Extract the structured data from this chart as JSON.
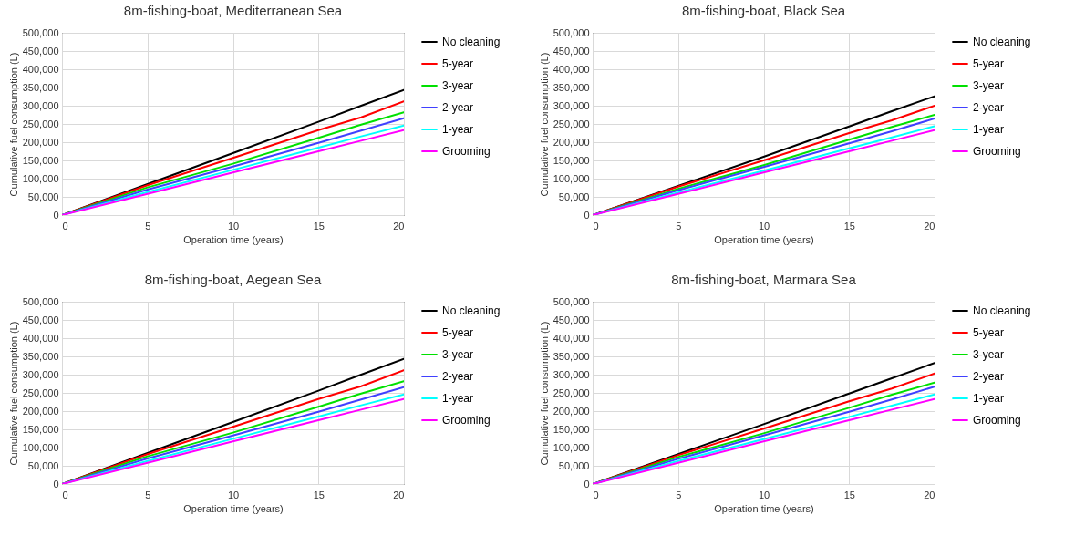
{
  "chart_data": [
    {
      "type": "line",
      "title": "8m-fishing-boat, Mediterranean Sea",
      "xlabel": "Operation time (years)",
      "ylabel": "Cumulative fuel consumption (L)",
      "x": [
        0,
        5,
        10,
        15,
        17.5,
        20
      ],
      "xlim": [
        0,
        20
      ],
      "xticks": [
        0,
        5,
        10,
        15,
        20
      ],
      "ylim": [
        0,
        500000
      ],
      "yticks": [
        {
          "value": 0,
          "label": "0"
        },
        {
          "value": 50000,
          "label": "50,000"
        },
        {
          "value": 100000,
          "label": "100,000"
        },
        {
          "value": 150000,
          "label": "150,000"
        },
        {
          "value": 200000,
          "label": "200,000"
        },
        {
          "value": 250000,
          "label": "250,000"
        },
        {
          "value": 300000,
          "label": "300,000"
        },
        {
          "value": 350000,
          "label": "350,000"
        },
        {
          "value": 400000,
          "label": "400,000"
        },
        {
          "value": 450000,
          "label": "450,000"
        },
        {
          "value": 500000,
          "label": "500,000"
        }
      ],
      "grid": true,
      "legend": "right",
      "series": [
        {
          "name": "No cleaning",
          "color": "#000000",
          "values": [
            0,
            85000,
            170000,
            256000,
            300000,
            343000
          ]
        },
        {
          "name": "5-year",
          "color": "#ff0000",
          "values": [
            0,
            82000,
            157000,
            233000,
            268000,
            312000
          ]
        },
        {
          "name": "3-year",
          "color": "#00e000",
          "values": [
            0,
            76000,
            141000,
            212000,
            248000,
            282000
          ]
        },
        {
          "name": "2-year",
          "color": "#4040ff",
          "values": [
            0,
            70000,
            133000,
            198000,
            232000,
            266000
          ]
        },
        {
          "name": "1-year",
          "color": "#00ffff",
          "values": [
            0,
            63000,
            124000,
            185000,
            216000,
            246000
          ]
        },
        {
          "name": "Grooming",
          "color": "#ff00ff",
          "values": [
            0,
            58000,
            117000,
            175000,
            204000,
            233000
          ]
        }
      ]
    },
    {
      "type": "line",
      "title": "8m-fishing-boat, Black Sea",
      "xlabel": "Operation time (years)",
      "ylabel": "Cumulative fuel consumption (L)",
      "x": [
        0,
        5,
        10,
        15,
        17.5,
        20
      ],
      "xlim": [
        0,
        20
      ],
      "xticks": [
        0,
        5,
        10,
        15,
        20
      ],
      "ylim": [
        0,
        500000
      ],
      "yticks": [
        {
          "value": 0,
          "label": "0"
        },
        {
          "value": 50000,
          "label": "50,000"
        },
        {
          "value": 100000,
          "label": "100,000"
        },
        {
          "value": 150000,
          "label": "150,000"
        },
        {
          "value": 200000,
          "label": "200,000"
        },
        {
          "value": 250000,
          "label": "250,000"
        },
        {
          "value": 300000,
          "label": "300,000"
        },
        {
          "value": 350000,
          "label": "350,000"
        },
        {
          "value": 400000,
          "label": "400,000"
        },
        {
          "value": 450000,
          "label": "450,000"
        },
        {
          "value": 500000,
          "label": "500,000"
        }
      ],
      "grid": true,
      "legend": "right",
      "series": [
        {
          "name": "No cleaning",
          "color": "#000000",
          "values": [
            0,
            80000,
            160000,
            243000,
            285000,
            326000
          ]
        },
        {
          "name": "5-year",
          "color": "#ff0000",
          "values": [
            0,
            78000,
            150000,
            225000,
            260000,
            300000
          ]
        },
        {
          "name": "3-year",
          "color": "#00e000",
          "values": [
            0,
            72000,
            137000,
            207000,
            242000,
            275000
          ]
        },
        {
          "name": "2-year",
          "color": "#4040ff",
          "values": [
            0,
            68000,
            132000,
            197000,
            230000,
            265000
          ]
        },
        {
          "name": "1-year",
          "color": "#00ffff",
          "values": [
            0,
            62000,
            122000,
            183000,
            213000,
            244000
          ]
        },
        {
          "name": "Grooming",
          "color": "#ff00ff",
          "values": [
            0,
            58000,
            117000,
            175000,
            204000,
            233000
          ]
        }
      ]
    },
    {
      "type": "line",
      "title": "8m-fishing-boat, Aegean Sea",
      "xlabel": "Operation time (years)",
      "ylabel": "Cumulative fuel consumption (L)",
      "x": [
        0,
        5,
        10,
        15,
        17.5,
        20
      ],
      "xlim": [
        0,
        20
      ],
      "xticks": [
        0,
        5,
        10,
        15,
        20
      ],
      "ylim": [
        0,
        500000
      ],
      "yticks": [
        {
          "value": 0,
          "label": "0"
        },
        {
          "value": 50000,
          "label": "50,000"
        },
        {
          "value": 100000,
          "label": "100,000"
        },
        {
          "value": 150000,
          "label": "150,000"
        },
        {
          "value": 200000,
          "label": "200,000"
        },
        {
          "value": 250000,
          "label": "250,000"
        },
        {
          "value": 300000,
          "label": "300,000"
        },
        {
          "value": 350000,
          "label": "350,000"
        },
        {
          "value": 400000,
          "label": "400,000"
        },
        {
          "value": 450000,
          "label": "450,000"
        },
        {
          "value": 500000,
          "label": "500,000"
        }
      ],
      "grid": true,
      "legend": "right",
      "series": [
        {
          "name": "No cleaning",
          "color": "#000000",
          "values": [
            0,
            85000,
            170000,
            256000,
            300000,
            343000
          ]
        },
        {
          "name": "5-year",
          "color": "#ff0000",
          "values": [
            0,
            82000,
            157000,
            233000,
            268000,
            312000
          ]
        },
        {
          "name": "3-year",
          "color": "#00e000",
          "values": [
            0,
            76000,
            141000,
            212000,
            248000,
            282000
          ]
        },
        {
          "name": "2-year",
          "color": "#4040ff",
          "values": [
            0,
            70000,
            133000,
            198000,
            232000,
            266000
          ]
        },
        {
          "name": "1-year",
          "color": "#00ffff",
          "values": [
            0,
            63000,
            124000,
            185000,
            216000,
            246000
          ]
        },
        {
          "name": "Grooming",
          "color": "#ff00ff",
          "values": [
            0,
            58000,
            117000,
            175000,
            204000,
            233000
          ]
        }
      ]
    },
    {
      "type": "line",
      "title": "8m-fishing-boat, Marmara Sea",
      "xlabel": "Operation time (years)",
      "ylabel": "Cumulative fuel consumption (L)",
      "x": [
        0,
        5,
        10,
        15,
        17.5,
        20
      ],
      "xlim": [
        0,
        20
      ],
      "xticks": [
        0,
        5,
        10,
        15,
        20
      ],
      "ylim": [
        0,
        500000
      ],
      "yticks": [
        {
          "value": 0,
          "label": "0"
        },
        {
          "value": 50000,
          "label": "50,000"
        },
        {
          "value": 100000,
          "label": "100,000"
        },
        {
          "value": 150000,
          "label": "150,000"
        },
        {
          "value": 200000,
          "label": "200,000"
        },
        {
          "value": 250000,
          "label": "250,000"
        },
        {
          "value": 300000,
          "label": "300,000"
        },
        {
          "value": 350000,
          "label": "350,000"
        },
        {
          "value": 400000,
          "label": "400,000"
        },
        {
          "value": 450000,
          "label": "450,000"
        },
        {
          "value": 500000,
          "label": "500,000"
        }
      ],
      "grid": true,
      "legend": "right",
      "series": [
        {
          "name": "No cleaning",
          "color": "#000000",
          "values": [
            0,
            82000,
            164000,
            248000,
            290000,
            332000
          ]
        },
        {
          "name": "5-year",
          "color": "#ff0000",
          "values": [
            0,
            79000,
            152000,
            227000,
            262000,
            303000
          ]
        },
        {
          "name": "3-year",
          "color": "#00e000",
          "values": [
            0,
            74000,
            139000,
            209000,
            245000,
            278000
          ]
        },
        {
          "name": "2-year",
          "color": "#4040ff",
          "values": [
            0,
            69000,
            133000,
            198000,
            232000,
            267000
          ]
        },
        {
          "name": "1-year",
          "color": "#00ffff",
          "values": [
            0,
            63000,
            123000,
            184000,
            215000,
            246000
          ]
        },
        {
          "name": "Grooming",
          "color": "#ff00ff",
          "values": [
            0,
            58000,
            117000,
            175000,
            204000,
            233000
          ]
        }
      ]
    }
  ]
}
